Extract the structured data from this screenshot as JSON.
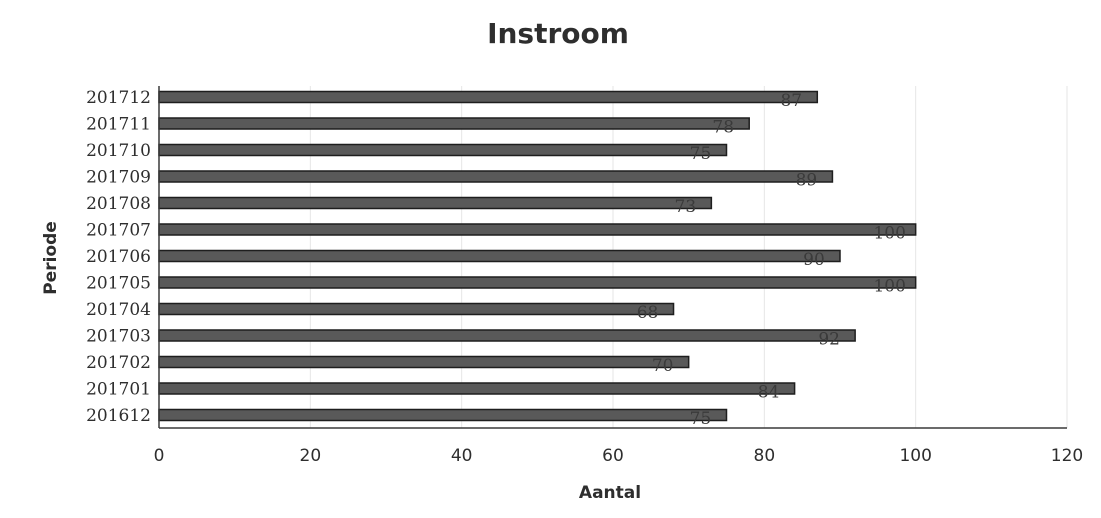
{
  "chart_data": {
    "type": "bar",
    "orientation": "horizontal",
    "title": "Instroom",
    "xlabel": "Aantal",
    "ylabel": "Periode",
    "categories": [
      "201712",
      "201711",
      "201710",
      "201709",
      "201708",
      "201707",
      "201706",
      "201705",
      "201704",
      "201703",
      "201702",
      "201701",
      "201612"
    ],
    "values": [
      87,
      78,
      75,
      89,
      73,
      100,
      90,
      100,
      68,
      92,
      70,
      84,
      75
    ],
    "xlim": [
      0,
      120
    ],
    "xticks": [
      0,
      20,
      40,
      60,
      80,
      100,
      120
    ],
    "data_labels": true,
    "grid": "vertical",
    "legend": "none",
    "bar_color": "#595959",
    "bar_edge_color": "#1e1e1e"
  }
}
